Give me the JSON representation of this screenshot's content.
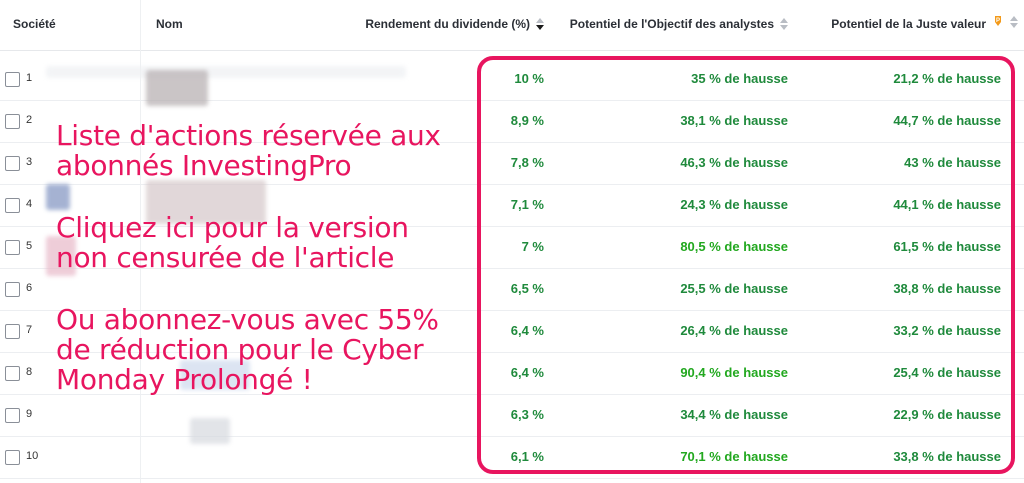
{
  "header": {
    "societe": "Société",
    "nom": "Nom",
    "rendement": "Rendement du dividende (%)",
    "potentiel_objectif": "Potentiel de l'Objectif des analystes",
    "potentiel_juste": "Potentiel de la Juste valeur"
  },
  "colors": {
    "dark_green": "#1f8a3c",
    "bright_green": "#22a81f",
    "promo_pink": "#e8155f"
  },
  "rows": [
    {
      "num": "1",
      "rendement": "10 %",
      "objectif": "35 % de hausse",
      "juste": "21,2 % de hausse",
      "obj_bright": false
    },
    {
      "num": "2",
      "rendement": "8,9 %",
      "objectif": "38,1 % de hausse",
      "juste": "44,7 % de hausse",
      "obj_bright": false
    },
    {
      "num": "3",
      "rendement": "7,8 %",
      "objectif": "46,3 % de hausse",
      "juste": "43 % de hausse",
      "obj_bright": false
    },
    {
      "num": "4",
      "rendement": "7,1 %",
      "objectif": "24,3 % de hausse",
      "juste": "44,1 % de hausse",
      "obj_bright": false
    },
    {
      "num": "5",
      "rendement": "7 %",
      "objectif": "80,5 % de hausse",
      "juste": "61,5 % de hausse",
      "obj_bright": true
    },
    {
      "num": "6",
      "rendement": "6,5 %",
      "objectif": "25,5 % de hausse",
      "juste": "38,8 % de hausse",
      "obj_bright": false
    },
    {
      "num": "7",
      "rendement": "6,4 %",
      "objectif": "26,4 % de hausse",
      "juste": "33,2 % de hausse",
      "obj_bright": false
    },
    {
      "num": "8",
      "rendement": "6,4 %",
      "objectif": "90,4 % de hausse",
      "juste": "25,4 % de hausse",
      "obj_bright": true
    },
    {
      "num": "9",
      "rendement": "6,3 %",
      "objectif": "34,4 % de hausse",
      "juste": "22,9 % de hausse",
      "obj_bright": false
    },
    {
      "num": "10",
      "rendement": "6,1 %",
      "objectif": "70,1 % de hausse",
      "juste": "33,8 % de hausse",
      "obj_bright": true
    }
  ],
  "promo": {
    "line1": "Liste d'actions réservée aux",
    "line2": "abonnés InvestingPro",
    "line3": "Cliquez ici pour la version",
    "line4": "non censurée de l'article",
    "line5": "Ou abonnez-vous avec 55%",
    "line6": "de réduction pour le Cyber",
    "line7": "Monday Prolongé !"
  },
  "icons": {
    "sort_active": "sort-desc-icon",
    "sort_inactive": "sort-icon",
    "pro": "pro-badge-icon"
  }
}
